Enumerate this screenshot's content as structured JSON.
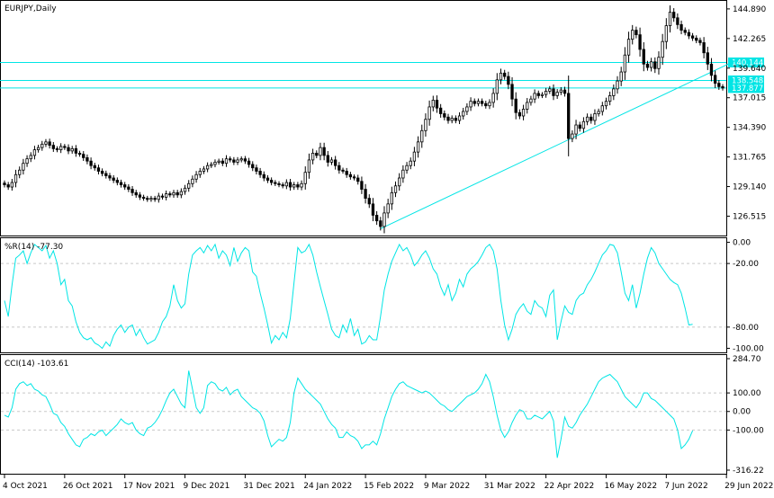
{
  "chart_data": [
    {
      "type": "candlestick",
      "panel": "price",
      "title": "EURJPY,Daily",
      "ylim": [
        124.8,
        145.6
      ],
      "yticks": [
        {
          "value": 144.89,
          "label": "144.890"
        },
        {
          "value": 142.265,
          "label": "142.265"
        },
        {
          "value": 139.64,
          "label": "139.640"
        },
        {
          "value": 137.015,
          "label": "137.015"
        },
        {
          "value": 134.39,
          "label": "134.390"
        },
        {
          "value": 131.765,
          "label": "131.765"
        },
        {
          "value": 129.14,
          "label": "129.140"
        },
        {
          "value": 126.515,
          "label": "126.515"
        }
      ],
      "xticks": [
        {
          "index": 0,
          "label": "4 Oct 2021"
        },
        {
          "index": 16,
          "label": "26 Oct 2021"
        },
        {
          "index": 32,
          "label": "17 Nov 2021"
        },
        {
          "index": 48,
          "label": "9 Dec 2021"
        },
        {
          "index": 64,
          "label": "31 Dec 2021"
        },
        {
          "index": 80,
          "label": "24 Jan 2022"
        },
        {
          "index": 96,
          "label": "15 Feb 2022"
        },
        {
          "index": 112,
          "label": "9 Mar 2022"
        },
        {
          "index": 128,
          "label": "31 Mar 2022"
        },
        {
          "index": 144,
          "label": "22 Apr 2022"
        },
        {
          "index": 160,
          "label": "16 May 2022"
        },
        {
          "index": 176,
          "label": "7 Jun 2022"
        },
        {
          "index": 192,
          "label": "29 Jun 2022"
        }
      ],
      "close": [
        129.3,
        129.1,
        129.5,
        130.2,
        130.6,
        131.2,
        131.6,
        131.9,
        132.4,
        132.6,
        132.9,
        133.1,
        132.8,
        132.5,
        132.4,
        132.7,
        132.6,
        132.3,
        132.5,
        132.1,
        132.0,
        131.7,
        131.4,
        131.0,
        130.8,
        130.5,
        130.3,
        130.1,
        129.9,
        129.7,
        129.5,
        129.3,
        129.1,
        128.9,
        128.6,
        128.4,
        128.2,
        128.1,
        128.0,
        128.1,
        128.0,
        128.3,
        128.2,
        128.5,
        128.4,
        128.6,
        128.4,
        128.7,
        129.0,
        129.4,
        129.8,
        130.2,
        130.5,
        130.7,
        131.0,
        131.1,
        131.3,
        131.4,
        131.2,
        131.6,
        131.5,
        131.3,
        131.5,
        131.6,
        131.4,
        131.1,
        130.8,
        130.5,
        130.2,
        129.9,
        129.7,
        129.5,
        129.4,
        129.3,
        129.2,
        129.5,
        129.1,
        129.3,
        129.1,
        129.4,
        130.4,
        131.5,
        132.1,
        131.9,
        132.6,
        131.9,
        131.3,
        131.5,
        131.0,
        130.6,
        130.5,
        130.2,
        130.0,
        129.9,
        129.6,
        128.9,
        128.1,
        127.6,
        126.6,
        126.1,
        125.6,
        126.8,
        127.6,
        128.6,
        129.2,
        129.9,
        130.6,
        131.0,
        131.4,
        132.2,
        133.1,
        134.1,
        135.1,
        136.2,
        136.8,
        136.1,
        135.6,
        135.3,
        135.0,
        135.2,
        135.0,
        135.4,
        135.8,
        136.2,
        136.7,
        136.5,
        136.7,
        136.5,
        136.3,
        136.6,
        137.4,
        138.6,
        139.2,
        138.9,
        138.2,
        136.9,
        135.7,
        135.4,
        136.0,
        136.6,
        136.9,
        137.4,
        137.2,
        137.3,
        137.6,
        137.8,
        137.2,
        137.5,
        137.7,
        137.4,
        133.4,
        133.8,
        134.6,
        134.3,
        134.9,
        135.3,
        135.0,
        135.6,
        135.8,
        136.3,
        136.7,
        137.2,
        137.8,
        138.5,
        139.3,
        140.8,
        142.2,
        143.0,
        142.6,
        141.3,
        140.0,
        139.7,
        140.2,
        139.6,
        140.6,
        142.0,
        143.4,
        144.6,
        144.1,
        143.5,
        143.0,
        142.8,
        142.5,
        142.3,
        142.1,
        141.9,
        141.0,
        140.0,
        139.0,
        138.3,
        138.0,
        137.877
      ],
      "hlines": [
        {
          "value": 140.144,
          "label": "140.144"
        },
        {
          "value": 138.548,
          "label": "138.548"
        },
        {
          "value": 137.877,
          "label": "137.877"
        }
      ],
      "trendline": {
        "from": {
          "index": 100,
          "value": 125.4
        },
        "to": {
          "index": 195,
          "value": 140.4
        }
      }
    },
    {
      "type": "line",
      "panel": "williams_r",
      "title": "%R(14) -77.30",
      "ylim": [
        -103,
        3
      ],
      "yticks": [
        {
          "value": 0,
          "label": "0.00"
        },
        {
          "value": -20,
          "label": "-20.00"
        },
        {
          "value": -80,
          "label": "-80.00"
        },
        {
          "value": -100,
          "label": "-100.00"
        }
      ],
      "gridlines": [
        -20,
        -80
      ],
      "values": [
        -55,
        -70,
        -40,
        -15,
        -12,
        -8,
        -20,
        -10,
        -2,
        -5,
        -8,
        -3,
        -15,
        -8,
        -20,
        -40,
        -35,
        -55,
        -60,
        -75,
        -85,
        -90,
        -92,
        -90,
        -95,
        -97,
        -100,
        -94,
        -98,
        -88,
        -82,
        -78,
        -85,
        -80,
        -78,
        -88,
        -82,
        -90,
        -96,
        -94,
        -92,
        -85,
        -75,
        -70,
        -60,
        -40,
        -55,
        -62,
        -58,
        -30,
        -12,
        -8,
        -5,
        -10,
        -3,
        -8,
        -2,
        -15,
        -8,
        -12,
        -22,
        -5,
        -18,
        -10,
        -5,
        -8,
        -28,
        -32,
        -48,
        -62,
        -78,
        -95,
        -88,
        -92,
        -85,
        -90,
        -72,
        -38,
        -5,
        -10,
        -8,
        -2,
        -12,
        -28,
        -42,
        -55,
        -68,
        -82,
        -88,
        -90,
        -78,
        -85,
        -72,
        -88,
        -82,
        -96,
        -94,
        -88,
        -92,
        -92,
        -70,
        -45,
        -30,
        -18,
        -10,
        -2,
        -8,
        -5,
        -12,
        -22,
        -18,
        -12,
        -8,
        -15,
        -25,
        -30,
        -42,
        -50,
        -40,
        -55,
        -48,
        -35,
        -42,
        -30,
        -25,
        -22,
        -18,
        -12,
        -5,
        -2,
        -8,
        -25,
        -55,
        -78,
        -92,
        -82,
        -68,
        -62,
        -58,
        -65,
        -68,
        -55,
        -60,
        -62,
        -70,
        -50,
        -45,
        -92,
        -75,
        -60,
        -66,
        -68,
        -55,
        -50,
        -48,
        -40,
        -35,
        -28,
        -20,
        -12,
        -8,
        -2,
        -3,
        -10,
        -28,
        -48,
        -55,
        -40,
        -62,
        -48,
        -30,
        -15,
        -5,
        -10,
        -20,
        -25,
        -30,
        -35,
        -38,
        -40,
        -48,
        -62,
        -78,
        -77.3
      ]
    },
    {
      "type": "line",
      "panel": "cci",
      "title": "CCI(14) -103.61",
      "ylim": [
        -316.22,
        284.7
      ],
      "yticks": [
        {
          "value": 284.7,
          "label": "284.70"
        },
        {
          "value": 100,
          "label": "100.00"
        },
        {
          "value": 0,
          "label": "0.00"
        },
        {
          "value": -100,
          "label": "-100.00"
        },
        {
          "value": -316.22,
          "label": "-316.22"
        }
      ],
      "gridlines": [
        100,
        0,
        -100
      ],
      "values": [
        -20,
        -30,
        20,
        120,
        150,
        160,
        140,
        150,
        120,
        110,
        90,
        80,
        40,
        -10,
        -20,
        -60,
        -80,
        -120,
        -150,
        -180,
        -190,
        -150,
        -140,
        -120,
        -130,
        -110,
        -100,
        -130,
        -110,
        -90,
        -70,
        -40,
        -60,
        -70,
        -60,
        -100,
        -120,
        -130,
        -90,
        -80,
        -60,
        -30,
        10,
        60,
        100,
        120,
        80,
        40,
        20,
        220,
        120,
        20,
        -10,
        20,
        140,
        160,
        150,
        120,
        110,
        130,
        90,
        110,
        120,
        80,
        60,
        40,
        20,
        10,
        -10,
        -50,
        -130,
        -190,
        -170,
        -150,
        -160,
        -140,
        -60,
        100,
        180,
        150,
        120,
        100,
        80,
        60,
        40,
        0,
        -40,
        -70,
        -90,
        -140,
        -140,
        -110,
        -130,
        -140,
        -160,
        -200,
        -180,
        -180,
        -160,
        -180,
        -120,
        -40,
        20,
        80,
        120,
        150,
        160,
        140,
        130,
        120,
        110,
        100,
        110,
        100,
        80,
        60,
        40,
        30,
        10,
        0,
        20,
        40,
        60,
        80,
        90,
        100,
        120,
        150,
        200,
        160,
        80,
        -20,
        -100,
        -140,
        -110,
        -60,
        -20,
        10,
        0,
        -40,
        -40,
        -20,
        -30,
        -40,
        -20,
        0,
        -50,
        -250,
        -150,
        -30,
        -80,
        -90,
        -60,
        -20,
        10,
        40,
        80,
        120,
        160,
        180,
        190,
        200,
        180,
        160,
        120,
        80,
        60,
        40,
        20,
        50,
        100,
        100,
        70,
        60,
        40,
        20,
        0,
        -20,
        -40,
        -100,
        -200,
        -180,
        -150,
        -103.61
      ]
    }
  ]
}
